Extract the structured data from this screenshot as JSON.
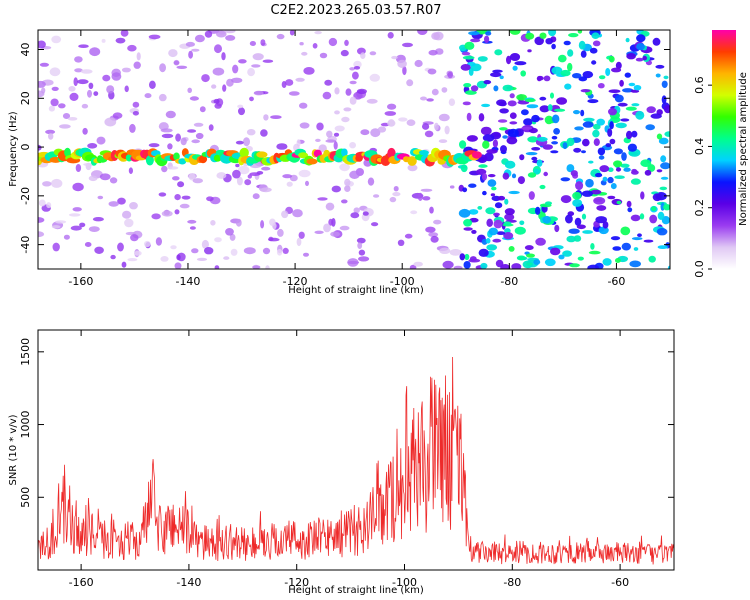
{
  "figure": {
    "title": "C2E2.2023.265.03.57.R07"
  },
  "chart_data": [
    {
      "type": "heatmap",
      "title": "",
      "xlabel": "Height of straight line (km)",
      "ylabel": "Frequency (Hz)",
      "xlim": [
        -168,
        -50
      ],
      "ylim": [
        -50,
        48
      ],
      "xticks": [
        -160,
        -140,
        -120,
        -100,
        -80,
        -60
      ],
      "yticks": [
        -40,
        -20,
        0,
        20,
        40
      ],
      "colorbar": {
        "label": "Normalized spectral amplitude",
        "range": [
          0.0,
          0.78
        ],
        "ticks": [
          0.0,
          0.2,
          0.4,
          0.6
        ],
        "colormap": [
          "#ffffff",
          "#e0c8f4",
          "#9a3cf0",
          "#5a00e6",
          "#0a14ff",
          "#00d2ff",
          "#00ff8c",
          "#32ff00",
          "#d2ff00",
          "#ffb400",
          "#ff3c00",
          "#ff00aa"
        ]
      },
      "band": {
        "center_hz": -4,
        "half_width_hz": 4,
        "x_start": -168,
        "x_end": -86,
        "peak_value": 0.78
      },
      "noise": {
        "change_x": -89,
        "low_level": 0.15,
        "high_level": 0.42
      }
    },
    {
      "type": "line",
      "title": "",
      "xlabel": "Height of straight line (km)",
      "ylabel": "SNR (10 * v/v)",
      "xlim": [
        -168,
        -50
      ],
      "ylim": [
        0,
        1650
      ],
      "xticks": [
        -160,
        -140,
        -120,
        -100,
        -80,
        -60
      ],
      "yticks": [
        500,
        1000,
        1500
      ],
      "series": [
        {
          "color": "#ee2a2a",
          "x": [
            -168,
            -165,
            -163,
            -161,
            -159,
            -157,
            -155,
            -153,
            -151,
            -149,
            -147,
            -145,
            -143,
            -141,
            -139,
            -137,
            -135,
            -133,
            -131,
            -129,
            -127,
            -125,
            -123,
            -121,
            -119,
            -117,
            -115,
            -113,
            -111,
            -109,
            -107,
            -105,
            -104,
            -103,
            -102,
            -101,
            -100,
            -99,
            -98,
            -97,
            -96,
            -95,
            -94,
            -93,
            -92,
            -91,
            -90,
            -89,
            -88,
            -87,
            -86,
            -84,
            -82,
            -80,
            -78,
            -76,
            -74,
            -72,
            -70,
            -68,
            -66,
            -64,
            -62,
            -60,
            -58,
            -56,
            -54,
            -52,
            -50
          ],
          "y": [
            260,
            300,
            620,
            330,
            380,
            290,
            300,
            280,
            280,
            270,
            640,
            330,
            460,
            390,
            300,
            260,
            240,
            270,
            260,
            230,
            260,
            270,
            280,
            300,
            270,
            290,
            310,
            330,
            350,
            380,
            430,
            520,
            600,
            650,
            700,
            750,
            820,
            900,
            950,
            1050,
            1000,
            1150,
            1100,
            1300,
            1050,
            1050,
            1000,
            950,
            160,
            170,
            160,
            170,
            160,
            165,
            170,
            160,
            165,
            160,
            165,
            160,
            170,
            160,
            165,
            160,
            155,
            165,
            150,
            155,
            150
          ]
        }
      ]
    }
  ]
}
